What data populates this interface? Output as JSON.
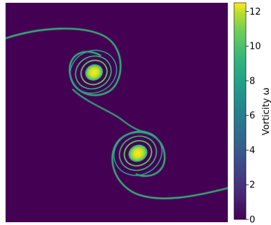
{
  "chart_data": {
    "type": "heatmap",
    "title": "",
    "xlabel": "",
    "ylabel": "",
    "colormap": "viridis",
    "colorbar": {
      "label": "Vorticity ω",
      "range": [
        0,
        12.5
      ],
      "ticks": [
        0,
        2,
        4,
        6,
        8,
        10,
        12
      ]
    },
    "axes_visible": false,
    "vortices": [
      {
        "center": [
          0.39,
          0.7
        ],
        "peak": 12.5
      },
      {
        "center": [
          0.59,
          0.32
        ],
        "peak": 12.5
      }
    ]
  }
}
